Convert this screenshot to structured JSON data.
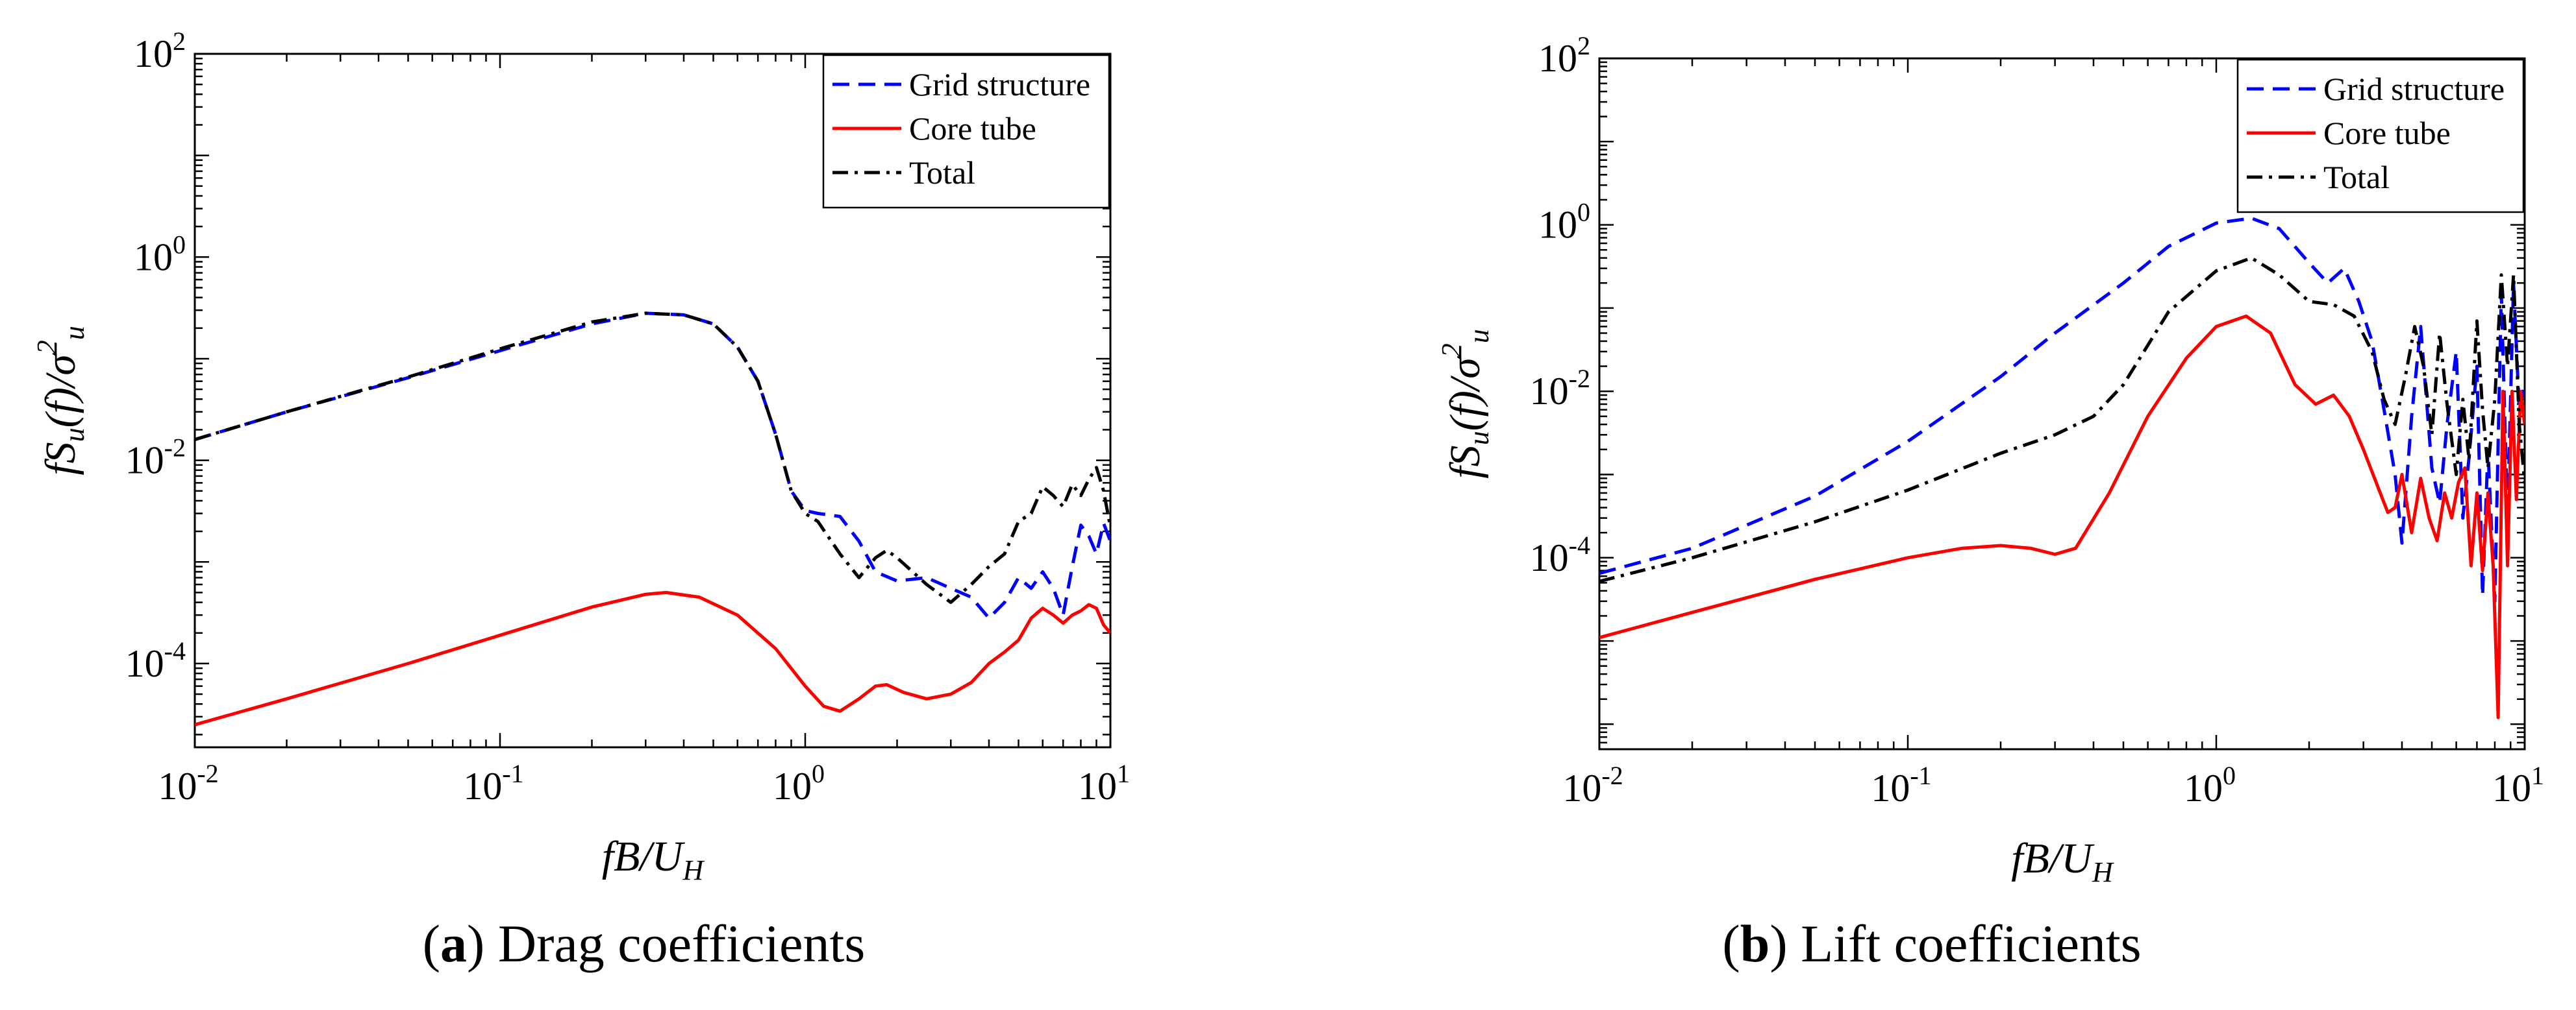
{
  "captions": [
    {
      "label": "a",
      "text": "Drag coefficients"
    },
    {
      "label": "b",
      "text": "Lift coefficients"
    }
  ],
  "colors": {
    "grid_structure": "#0000ff",
    "core_tube": "#ff0000",
    "total": "#000000",
    "axis": "#000000"
  },
  "chart_data": [
    {
      "type": "line",
      "title": "(a) Drag coefficients",
      "xscale": "log",
      "yscale": "log",
      "xlim": [
        0.01,
        10
      ],
      "ylim": [
        1.5e-05,
        100
      ],
      "xlabel": {
        "main": "fB/U",
        "sub": "H"
      },
      "ylabel": {
        "main": "fS",
        "sub1": "u",
        "mid": "(f)/σ",
        "sup": "2",
        "sub2": "u"
      },
      "xticks": [
        {
          "base": "10",
          "exp": "-2",
          "value": 0.01
        },
        {
          "base": "10",
          "exp": "-1",
          "value": 0.1
        },
        {
          "base": "10",
          "exp": "0",
          "value": 1
        },
        {
          "base": "10",
          "exp": "1",
          "value": 10
        }
      ],
      "yticks": [
        {
          "base": "10",
          "exp": "-4",
          "value": 0.0001
        },
        {
          "base": "10",
          "exp": "-2",
          "value": 0.01
        },
        {
          "base": "10",
          "exp": "0",
          "value": 1
        },
        {
          "base": "10",
          "exp": "2",
          "value": 100
        }
      ],
      "legend_position": "top-right",
      "series": [
        {
          "name": "Grid structure",
          "style": "dashed",
          "color": "#0000ff",
          "x": [
            0.01,
            0.02,
            0.05,
            0.1,
            0.2,
            0.3,
            0.4,
            0.5,
            0.6,
            0.7,
            0.8,
            0.9,
            1.0,
            1.1,
            1.3,
            1.5,
            1.7,
            2.0,
            2.5,
            3.0,
            3.5,
            4.0,
            4.5,
            5.0,
            5.5,
            6.0,
            6.5,
            7.0,
            7.5,
            8.0,
            8.5,
            9.0,
            9.5,
            10.0
          ],
          "y": [
            0.016,
            0.03,
            0.065,
            0.12,
            0.22,
            0.28,
            0.27,
            0.22,
            0.13,
            0.06,
            0.018,
            0.005,
            0.0032,
            0.003,
            0.0028,
            0.0016,
            0.0008,
            0.00065,
            0.0007,
            0.00055,
            0.00045,
            0.00028,
            0.0004,
            0.0007,
            0.00055,
            0.0008,
            0.00055,
            0.0003,
            0.0009,
            0.0023,
            0.0018,
            0.0012,
            0.0024,
            0.0016
          ]
        },
        {
          "name": "Core tube",
          "style": "solid",
          "color": "#ff0000",
          "x": [
            0.01,
            0.02,
            0.05,
            0.1,
            0.2,
            0.3,
            0.35,
            0.45,
            0.6,
            0.8,
            1.0,
            1.15,
            1.3,
            1.5,
            1.7,
            1.85,
            2.1,
            2.5,
            3.0,
            3.5,
            4.0,
            4.5,
            5.0,
            5.5,
            6.0,
            6.5,
            7.0,
            7.5,
            8.0,
            8.5,
            9.0,
            9.5,
            10.0
          ],
          "y": [
            2.5e-05,
            4.5e-05,
            0.0001,
            0.00019,
            0.00036,
            0.00048,
            0.0005,
            0.00045,
            0.0003,
            0.00014,
            6e-05,
            3.8e-05,
            3.4e-05,
            4.5e-05,
            6e-05,
            6.2e-05,
            5.2e-05,
            4.5e-05,
            5e-05,
            6.5e-05,
            0.0001,
            0.00013,
            0.00017,
            0.00028,
            0.00035,
            0.0003,
            0.00025,
            0.0003,
            0.00033,
            0.00038,
            0.00035,
            0.00024,
            0.0002
          ]
        },
        {
          "name": "Total",
          "style": "dashdot",
          "color": "#000000",
          "x": [
            0.01,
            0.02,
            0.05,
            0.1,
            0.2,
            0.3,
            0.4,
            0.5,
            0.6,
            0.7,
            0.8,
            0.9,
            1.0,
            1.1,
            1.3,
            1.5,
            1.7,
            1.85,
            2.0,
            2.5,
            3.0,
            3.5,
            4.0,
            4.5,
            5.0,
            5.5,
            6.0,
            6.5,
            7.0,
            7.5,
            8.0,
            8.5,
            9.0,
            9.5,
            10.0
          ],
          "y": [
            0.016,
            0.03,
            0.066,
            0.125,
            0.23,
            0.28,
            0.27,
            0.22,
            0.13,
            0.06,
            0.018,
            0.005,
            0.003,
            0.0025,
            0.0012,
            0.0007,
            0.0011,
            0.0013,
            0.0011,
            0.0006,
            0.0004,
            0.0006,
            0.0009,
            0.0012,
            0.0025,
            0.003,
            0.0055,
            0.0045,
            0.0035,
            0.0058,
            0.0045,
            0.0065,
            0.0085,
            0.005,
            0.0022
          ]
        }
      ]
    },
    {
      "type": "line",
      "title": "(b) Lift coefficients",
      "xscale": "log",
      "yscale": "log",
      "xlim": [
        0.01,
        10
      ],
      "ylim": [
        5e-07,
        100
      ],
      "xlabel": {
        "main": "fB/U",
        "sub": "H"
      },
      "ylabel": {
        "main": "fS",
        "sub1": "u",
        "mid": "(f)/σ",
        "sup": "2",
        "sub2": "u"
      },
      "xticks": [
        {
          "base": "10",
          "exp": "-2",
          "value": 0.01
        },
        {
          "base": "10",
          "exp": "-1",
          "value": 0.1
        },
        {
          "base": "10",
          "exp": "0",
          "value": 1
        },
        {
          "base": "10",
          "exp": "1",
          "value": 10
        }
      ],
      "yticks": [
        {
          "base": "10",
          "exp": "-4",
          "value": 0.0001
        },
        {
          "base": "10",
          "exp": "-2",
          "value": 0.01
        },
        {
          "base": "10",
          "exp": "0",
          "value": 1
        },
        {
          "base": "10",
          "exp": "2",
          "value": 100
        }
      ],
      "legend_position": "top-right",
      "series": [
        {
          "name": "Grid structure",
          "style": "dashed",
          "color": "#0000ff",
          "x": [
            0.01,
            0.02,
            0.05,
            0.1,
            0.2,
            0.3,
            0.5,
            0.7,
            1.0,
            1.3,
            1.6,
            2.0,
            2.3,
            2.6,
            2.9,
            3.2,
            3.5,
            3.8,
            4.0,
            4.3,
            4.6,
            5.0,
            5.3,
            5.6,
            6.0,
            6.3,
            6.6,
            7.0,
            7.3,
            7.6,
            8.0,
            8.4,
            8.8,
            9.2,
            9.6,
            10.0
          ],
          "y": [
            6.5e-05,
            0.00013,
            0.00055,
            0.0025,
            0.015,
            0.05,
            0.2,
            0.55,
            1.05,
            1.2,
            0.9,
            0.35,
            0.2,
            0.3,
            0.12,
            0.04,
            0.006,
            0.001,
            0.00015,
            0.005,
            0.06,
            0.0012,
            0.00045,
            0.004,
            0.03,
            0.0003,
            0.0016,
            0.02,
            3.5e-05,
            0.002,
            3e-05,
            0.15,
            0.0003,
            0.2,
            0.006,
            0.012
          ]
        },
        {
          "name": "Core tube",
          "style": "solid",
          "color": "#ff0000",
          "x": [
            0.01,
            0.02,
            0.05,
            0.1,
            0.15,
            0.2,
            0.25,
            0.3,
            0.35,
            0.45,
            0.6,
            0.8,
            1.0,
            1.25,
            1.5,
            1.8,
            2.1,
            2.4,
            2.7,
            3.0,
            3.3,
            3.6,
            3.8,
            4.0,
            4.3,
            4.6,
            4.9,
            5.2,
            5.5,
            5.8,
            6.1,
            6.4,
            6.7,
            7.0,
            7.3,
            7.6,
            7.9,
            8.2,
            8.5,
            8.8,
            9.1,
            9.4,
            9.7,
            10.0
          ],
          "y": [
            1.1e-05,
            2.2e-05,
            5.5e-05,
            0.0001,
            0.00013,
            0.00014,
            0.00013,
            0.00011,
            0.00013,
            0.0006,
            0.005,
            0.025,
            0.06,
            0.08,
            0.05,
            0.012,
            0.007,
            0.009,
            0.005,
            0.002,
            0.0008,
            0.00035,
            0.0004,
            0.001,
            0.0002,
            0.0009,
            0.0003,
            0.00016,
            0.0006,
            0.0003,
            0.0008,
            0.0012,
            8e-05,
            0.0006,
            7e-05,
            0.0006,
            8e-05,
            1.2e-06,
            0.01,
            8e-05,
            0.01,
            0.0005,
            0.01,
            0.004
          ]
        },
        {
          "name": "Total",
          "style": "dashdot",
          "color": "#000000",
          "x": [
            0.01,
            0.02,
            0.05,
            0.1,
            0.2,
            0.3,
            0.4,
            0.5,
            0.7,
            1.0,
            1.3,
            1.6,
            2.0,
            2.4,
            2.8,
            3.2,
            3.5,
            3.8,
            4.1,
            4.4,
            4.7,
            5.0,
            5.3,
            5.6,
            6.0,
            6.3,
            6.6,
            7.0,
            7.3,
            7.6,
            8.0,
            8.4,
            8.8,
            9.2,
            9.6,
            10.0
          ],
          "y": [
            5.2e-05,
            0.0001,
            0.00027,
            0.00065,
            0.0018,
            0.003,
            0.005,
            0.012,
            0.09,
            0.28,
            0.4,
            0.25,
            0.12,
            0.11,
            0.08,
            0.03,
            0.008,
            0.004,
            0.015,
            0.06,
            0.02,
            0.003,
            0.05,
            0.007,
            0.001,
            0.008,
            0.0015,
            0.07,
            0.006,
            0.0012,
            0.008,
            0.25,
            0.02,
            0.25,
            0.004,
            0.0008
          ]
        }
      ]
    }
  ]
}
